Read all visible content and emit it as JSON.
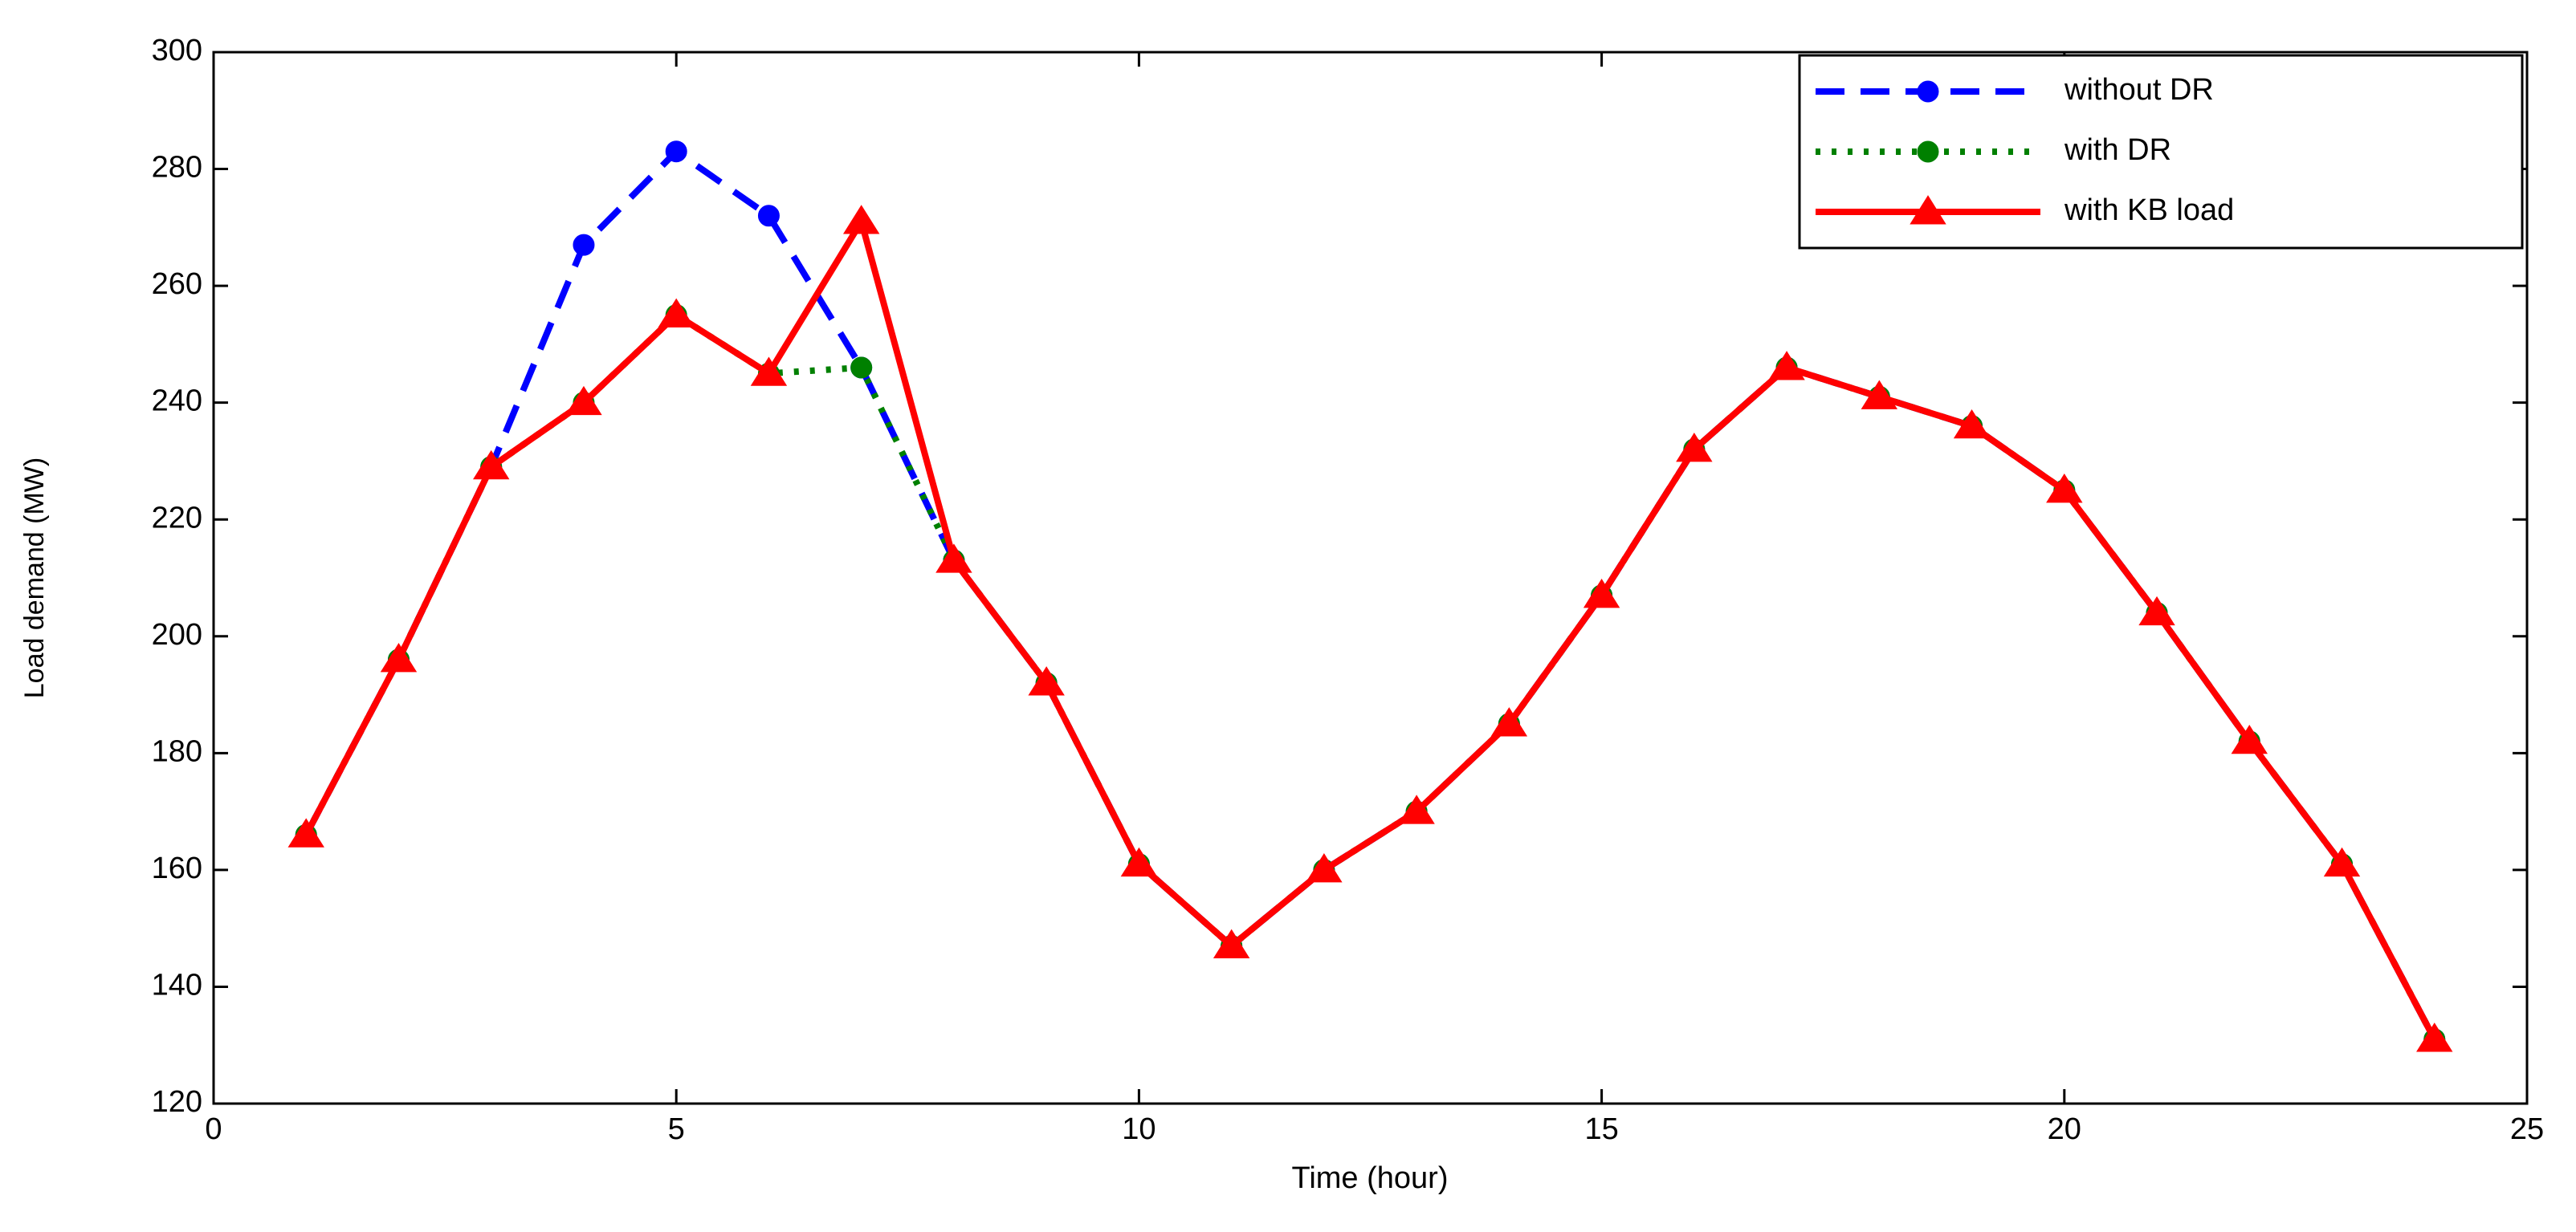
{
  "chart_data": {
    "type": "line",
    "x_label": "Time (hour)",
    "y_label": "Load demand (MW)",
    "x": [
      1,
      2,
      3,
      4,
      5,
      6,
      7,
      8,
      9,
      10,
      11,
      12,
      13,
      14,
      15,
      16,
      17,
      18,
      19,
      20,
      21,
      22,
      23,
      24
    ],
    "series": [
      {
        "name": "without DR",
        "color": "#0000ff",
        "dash": "dashed",
        "marker": "circle",
        "values": [
          166,
          196,
          229,
          267,
          283,
          272,
          246,
          213,
          192,
          161,
          147,
          160,
          170,
          185,
          207,
          232,
          246,
          241,
          236,
          225,
          204,
          182,
          161,
          131
        ]
      },
      {
        "name": "with DR",
        "color": "#008000",
        "dash": "dotted",
        "marker": "circle",
        "values": [
          166,
          196,
          229,
          240,
          255,
          245,
          246,
          213,
          192,
          161,
          147,
          160,
          170,
          185,
          207,
          232,
          246,
          241,
          236,
          225,
          204,
          182,
          161,
          131
        ]
      },
      {
        "name": "with KB load",
        "color": "#ff0000",
        "dash": "solid",
        "marker": "triangle",
        "values": [
          166,
          196,
          229,
          240,
          255,
          245,
          271,
          213,
          192,
          161,
          147,
          160,
          170,
          185,
          207,
          232,
          246,
          241,
          236,
          225,
          204,
          182,
          161,
          131
        ]
      }
    ],
    "xlim": [
      0,
      25
    ],
    "xticks": [
      0,
      5,
      10,
      15,
      20,
      25
    ],
    "ylim": [
      120,
      300
    ],
    "yticks": [
      120,
      140,
      160,
      180,
      200,
      220,
      240,
      260,
      280,
      300
    ],
    "legend": "upper right"
  }
}
